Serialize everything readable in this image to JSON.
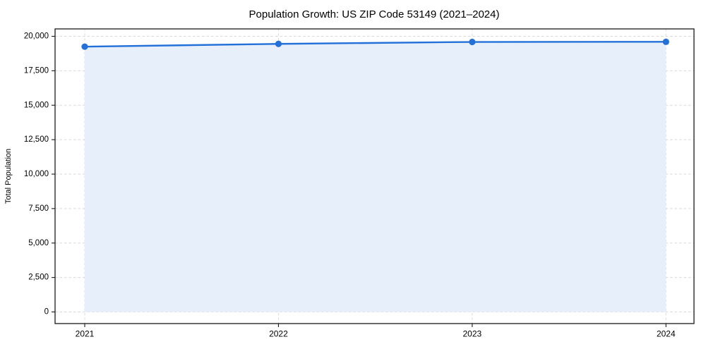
{
  "page": {
    "background": "#ffffff"
  },
  "chart_data": {
    "type": "area",
    "title": "Population Growth: US ZIP Code 53149 (2021–2024)",
    "xlabel": "",
    "ylabel": "Total Population",
    "categories": [
      "2021",
      "2022",
      "2023",
      "2024"
    ],
    "series": [
      {
        "name": "Total Population",
        "values": [
          19250,
          19450,
          19590,
          19600
        ]
      }
    ],
    "ylim": [
      0,
      20000
    ],
    "yticks": [
      0,
      2500,
      5000,
      7500,
      10000,
      12500,
      15000,
      17500,
      20000
    ],
    "ytick_labels": [
      "0",
      "2,500",
      "5,000",
      "7,500",
      "10,000",
      "12,500",
      "15,000",
      "17,500",
      "20,000"
    ],
    "grid": true,
    "grid_style": "dashed",
    "legend_position": "none",
    "marker": "circle",
    "colors": {
      "line": "#2270d8",
      "marker": "#2270d8",
      "area_fill": "#e7effb",
      "grid": "#d9d9d9",
      "axis": "#1a1a1a",
      "text": "#000000",
      "background": "#ffffff"
    }
  }
}
